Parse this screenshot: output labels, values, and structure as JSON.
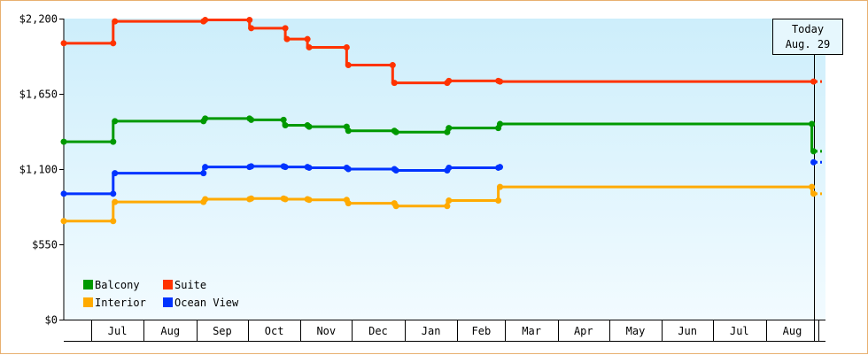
{
  "chart_data": {
    "type": "line",
    "step": true,
    "title": "",
    "xlabel": "",
    "ylabel": "",
    "ylim": [
      0,
      2200
    ],
    "y_ticks": [
      0,
      550,
      1100,
      1650,
      2200
    ],
    "y_tick_labels": [
      "$0",
      "$550",
      "$1,100",
      "$1,650",
      "$2,200"
    ],
    "x_range": [
      "2022-06-15",
      "2023-09-05"
    ],
    "x_ticks": [
      {
        "label": "Jul",
        "date": "2022-07-01"
      },
      {
        "label": "Aug",
        "date": "2022-08-01"
      },
      {
        "label": "Sep",
        "date": "2022-09-01"
      },
      {
        "label": "Oct",
        "date": "2022-10-01"
      },
      {
        "label": "Nov",
        "date": "2022-11-01"
      },
      {
        "label": "Dec",
        "date": "2022-12-01"
      },
      {
        "label": "Jan",
        "date": "2023-01-01"
      },
      {
        "label": "Feb",
        "date": "2023-02-01"
      },
      {
        "label": "Mar",
        "date": "2023-03-01"
      },
      {
        "label": "Apr",
        "date": "2023-04-01"
      },
      {
        "label": "May",
        "date": "2023-05-01"
      },
      {
        "label": "Jun",
        "date": "2023-06-01"
      },
      {
        "label": "Jul",
        "date": "2023-07-01"
      },
      {
        "label": "Aug",
        "date": "2023-08-01"
      }
    ],
    "today": {
      "label_line1": "Today",
      "label_line2": "Aug. 29",
      "date": "2023-08-29"
    },
    "legend_position": "bottom-left",
    "grid": false,
    "series": [
      {
        "name": "Suite",
        "color": "#ff3300",
        "points": [
          {
            "x": "2022-06-15",
            "y": 2020
          },
          {
            "x": "2022-07-14",
            "y": 2020
          },
          {
            "x": "2022-07-15",
            "y": 2180
          },
          {
            "x": "2022-09-05",
            "y": 2180
          },
          {
            "x": "2022-09-06",
            "y": 2190
          },
          {
            "x": "2022-10-02",
            "y": 2190
          },
          {
            "x": "2022-10-03",
            "y": 2130
          },
          {
            "x": "2022-10-23",
            "y": 2130
          },
          {
            "x": "2022-10-24",
            "y": 2050
          },
          {
            "x": "2022-11-05",
            "y": 2050
          },
          {
            "x": "2022-11-06",
            "y": 1990
          },
          {
            "x": "2022-11-28",
            "y": 1990
          },
          {
            "x": "2022-11-29",
            "y": 1860
          },
          {
            "x": "2022-12-25",
            "y": 1860
          },
          {
            "x": "2022-12-26",
            "y": 1730
          },
          {
            "x": "2023-01-26",
            "y": 1730
          },
          {
            "x": "2023-01-27",
            "y": 1745
          },
          {
            "x": "2023-02-25",
            "y": 1745
          },
          {
            "x": "2023-02-26",
            "y": 1740
          },
          {
            "x": "2023-08-29",
            "y": 1740
          }
        ],
        "forecast": 1740
      },
      {
        "name": "Balcony",
        "color": "#009900",
        "points": [
          {
            "x": "2022-06-15",
            "y": 1300
          },
          {
            "x": "2022-07-14",
            "y": 1300
          },
          {
            "x": "2022-07-15",
            "y": 1450
          },
          {
            "x": "2022-09-05",
            "y": 1450
          },
          {
            "x": "2022-09-06",
            "y": 1470
          },
          {
            "x": "2022-10-02",
            "y": 1470
          },
          {
            "x": "2022-10-03",
            "y": 1460
          },
          {
            "x": "2022-10-22",
            "y": 1460
          },
          {
            "x": "2022-10-23",
            "y": 1420
          },
          {
            "x": "2022-11-05",
            "y": 1420
          },
          {
            "x": "2022-11-06",
            "y": 1410
          },
          {
            "x": "2022-11-28",
            "y": 1410
          },
          {
            "x": "2022-11-29",
            "y": 1380
          },
          {
            "x": "2022-12-26",
            "y": 1380
          },
          {
            "x": "2022-12-27",
            "y": 1370
          },
          {
            "x": "2023-01-26",
            "y": 1370
          },
          {
            "x": "2023-01-27",
            "y": 1400
          },
          {
            "x": "2023-02-25",
            "y": 1400
          },
          {
            "x": "2023-02-26",
            "y": 1430
          },
          {
            "x": "2023-08-28",
            "y": 1430
          },
          {
            "x": "2023-08-29",
            "y": 1230
          }
        ],
        "forecast": 1230
      },
      {
        "name": "Ocean View",
        "color": "#0033ff",
        "points": [
          {
            "x": "2022-06-15",
            "y": 920
          },
          {
            "x": "2022-07-14",
            "y": 920
          },
          {
            "x": "2022-07-15",
            "y": 1070
          },
          {
            "x": "2022-09-05",
            "y": 1070
          },
          {
            "x": "2022-09-06",
            "y": 1115
          },
          {
            "x": "2022-10-02",
            "y": 1115
          },
          {
            "x": "2022-10-03",
            "y": 1120
          },
          {
            "x": "2022-10-22",
            "y": 1120
          },
          {
            "x": "2022-10-23",
            "y": 1115
          },
          {
            "x": "2022-11-05",
            "y": 1115
          },
          {
            "x": "2022-11-06",
            "y": 1110
          },
          {
            "x": "2022-11-28",
            "y": 1110
          },
          {
            "x": "2022-11-29",
            "y": 1100
          },
          {
            "x": "2022-12-26",
            "y": 1100
          },
          {
            "x": "2022-12-27",
            "y": 1090
          },
          {
            "x": "2023-01-26",
            "y": 1090
          },
          {
            "x": "2023-01-27",
            "y": 1110
          },
          {
            "x": "2023-02-25",
            "y": 1110
          },
          {
            "x": "2023-02-26",
            "y": 1115
          }
        ],
        "forecast": 1150
      },
      {
        "name": "Interior",
        "color": "#ffaa00",
        "points": [
          {
            "x": "2022-06-15",
            "y": 720
          },
          {
            "x": "2022-07-14",
            "y": 720
          },
          {
            "x": "2022-07-15",
            "y": 860
          },
          {
            "x": "2022-09-05",
            "y": 860
          },
          {
            "x": "2022-09-06",
            "y": 880
          },
          {
            "x": "2022-10-02",
            "y": 880
          },
          {
            "x": "2022-10-03",
            "y": 885
          },
          {
            "x": "2022-10-22",
            "y": 885
          },
          {
            "x": "2022-10-23",
            "y": 880
          },
          {
            "x": "2022-11-05",
            "y": 880
          },
          {
            "x": "2022-11-06",
            "y": 875
          },
          {
            "x": "2022-11-28",
            "y": 875
          },
          {
            "x": "2022-11-29",
            "y": 850
          },
          {
            "x": "2022-12-26",
            "y": 850
          },
          {
            "x": "2022-12-27",
            "y": 830
          },
          {
            "x": "2023-01-26",
            "y": 830
          },
          {
            "x": "2023-01-27",
            "y": 870
          },
          {
            "x": "2023-02-25",
            "y": 870
          },
          {
            "x": "2023-02-26",
            "y": 970
          },
          {
            "x": "2023-08-28",
            "y": 970
          },
          {
            "x": "2023-08-29",
            "y": 920
          }
        ],
        "forecast": 920
      }
    ],
    "legend": [
      {
        "name": "Balcony",
        "color": "#009900"
      },
      {
        "name": "Suite",
        "color": "#ff3300"
      },
      {
        "name": "Interior",
        "color": "#ffaa00"
      },
      {
        "name": "Ocean View",
        "color": "#0033ff"
      }
    ],
    "colors": {
      "plot_bg_top": "#cdeefb",
      "plot_bg_bottom": "#f2fbff",
      "frame_border": "#e8b070",
      "axis": "#000000"
    }
  }
}
